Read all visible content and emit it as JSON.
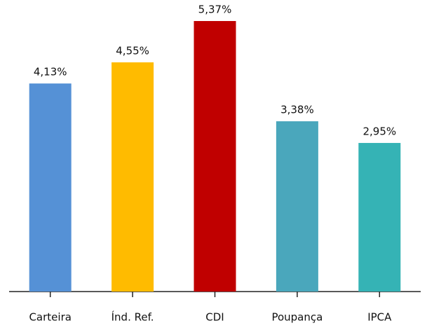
{
  "chart_data": {
    "type": "bar",
    "categories": [
      "Carteira",
      "Índ. Ref.",
      "CDI",
      "Poupança",
      "IPCA"
    ],
    "values": [
      4.13,
      4.55,
      5.37,
      3.38,
      2.95
    ],
    "value_labels": [
      "4,13%",
      "4,55%",
      "5,37%",
      "3,38%",
      "2,95%"
    ],
    "colors": [
      "#5591d6",
      "#ffbb00",
      "#c00000",
      "#4aa7bc",
      "#35b3b5"
    ]
  }
}
